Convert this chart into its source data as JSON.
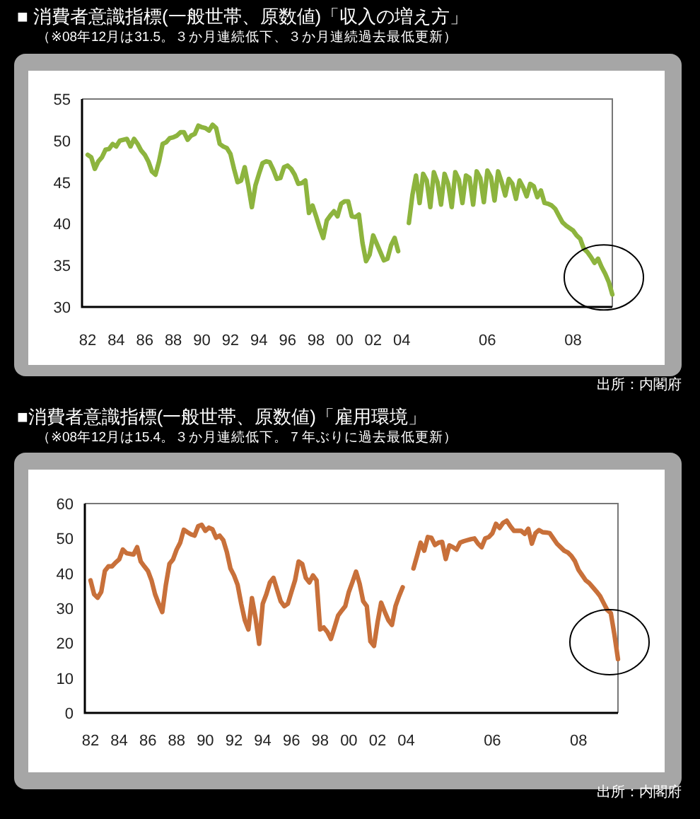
{
  "chart_data": [
    {
      "type": "line",
      "title": "■ 消費者意識指標(一般世帯、原数値)「収入の増え方」",
      "subtitle": "（※08年12月は31.5。３か月連続低下、３か月連続過去最低更新）",
      "categories": [
        "82",
        null,
        null,
        null,
        null,
        null,
        null,
        null,
        "84",
        null,
        null,
        null,
        null,
        null,
        null,
        null,
        "86",
        null,
        null,
        null,
        null,
        null,
        null,
        null,
        "88",
        null,
        null,
        null,
        null,
        null,
        null,
        null,
        "90",
        null,
        null,
        null,
        null,
        null,
        null,
        null,
        "92",
        null,
        null,
        null,
        null,
        null,
        null,
        null,
        "94",
        null,
        null,
        null,
        null,
        null,
        null,
        null,
        "96",
        null,
        null,
        null,
        null,
        null,
        null,
        null,
        "98",
        null,
        null,
        null,
        null,
        null,
        null,
        null,
        "00",
        null,
        null,
        null,
        null,
        null,
        null,
        null,
        "02",
        null,
        null,
        null,
        null,
        null,
        null,
        null,
        "04",
        null,
        null,
        null,
        null,
        null,
        null,
        null,
        null,
        null,
        null,
        null,
        null,
        null,
        null,
        null,
        null,
        null,
        null,
        null,
        null,
        null,
        null,
        null,
        "06",
        null,
        null,
        null,
        null,
        null,
        null,
        null,
        null,
        null,
        null,
        null,
        null,
        null,
        null,
        null,
        null,
        null,
        null,
        null,
        null,
        null,
        null,
        null,
        "08",
        null,
        null,
        null,
        null,
        null,
        null,
        null,
        null,
        null,
        null,
        null
      ],
      "series": [
        {
          "color": "#8db43e",
          "values": [
            48.3,
            48.0,
            46.6,
            47.5,
            48.0,
            48.9,
            49.0,
            49.6,
            49.3,
            50.0,
            50.1,
            50.2,
            49.3,
            50.2,
            49.6,
            48.8,
            48.3,
            47.5,
            46.3,
            45.9,
            47.5,
            49.6,
            49.8,
            50.3,
            50.4,
            50.6,
            51.0,
            51.0,
            50.1,
            50.6,
            50.8,
            51.8,
            51.6,
            51.5,
            51.2,
            51.9,
            51.5,
            49.6,
            49.3,
            49.1,
            48.4,
            46.6,
            45.0,
            45.2,
            46.8,
            44.6,
            42.0,
            44.6,
            46.0,
            47.3,
            47.5,
            47.4,
            46.5,
            45.4,
            45.5,
            46.8,
            47.0,
            46.6,
            45.9,
            44.8,
            44.9,
            45.2,
            41.3,
            42.2,
            40.9,
            39.5,
            38.3,
            40.4,
            41.0,
            41.5,
            40.9,
            42.4,
            42.7,
            42.7,
            40.9,
            40.8,
            41.1,
            37.7,
            35.5,
            36.3,
            38.6,
            37.6,
            36.6,
            35.6,
            35.8,
            37.4,
            38.3,
            36.7,
            null,
            null,
            40.1,
            43.5,
            45.8,
            42.5,
            46.0,
            45.2,
            42.0,
            46.2,
            45.0,
            42.3,
            46.0,
            44.8,
            42.0,
            46.2,
            45.3,
            42.5,
            45.8,
            45.5,
            42.3,
            46.3,
            45.5,
            42.6,
            46.4,
            45.6,
            42.8,
            46.3,
            45.0,
            43.4,
            45.4,
            44.8,
            43.0,
            45.2,
            44.4,
            43.3,
            44.8,
            44.5,
            43.2,
            44.0,
            42.5,
            42.4,
            42.2,
            41.8,
            41.0,
            40.2,
            39.8,
            39.5,
            39.2,
            38.6,
            38.2,
            37.0,
            36.6,
            36.0,
            35.3,
            35.8,
            34.8,
            34.0,
            33.0,
            31.5
          ]
        }
      ],
      "ylim": [
        30,
        55
      ],
      "yticks": [
        30,
        35,
        40,
        45,
        50,
        55
      ],
      "grid": false,
      "annotations": [
        "出所：内閣府"
      ]
    },
    {
      "type": "line",
      "title": "■消費者意識指標(一般世帯、原数値)「雇用環境」",
      "subtitle": "（※08年12月は15.4。３か月連続低下。７年ぶりに過去最低更新）",
      "categories": [
        "82",
        null,
        null,
        null,
        null,
        null,
        null,
        null,
        "84",
        null,
        null,
        null,
        null,
        null,
        null,
        null,
        "86",
        null,
        null,
        null,
        null,
        null,
        null,
        null,
        "88",
        null,
        null,
        null,
        null,
        null,
        null,
        null,
        "90",
        null,
        null,
        null,
        null,
        null,
        null,
        null,
        "92",
        null,
        null,
        null,
        null,
        null,
        null,
        null,
        "94",
        null,
        null,
        null,
        null,
        null,
        null,
        null,
        "96",
        null,
        null,
        null,
        null,
        null,
        null,
        null,
        "98",
        null,
        null,
        null,
        null,
        null,
        null,
        null,
        "00",
        null,
        null,
        null,
        null,
        null,
        null,
        null,
        "02",
        null,
        null,
        null,
        null,
        null,
        null,
        null,
        "04",
        null,
        null,
        null,
        null,
        null,
        null,
        null,
        null,
        null,
        null,
        null,
        null,
        null,
        null,
        null,
        null,
        null,
        null,
        null,
        null,
        null,
        null,
        null,
        "06",
        null,
        null,
        null,
        null,
        null,
        null,
        null,
        null,
        null,
        null,
        null,
        null,
        null,
        null,
        null,
        null,
        null,
        null,
        null,
        null,
        null,
        null,
        null,
        "08",
        null,
        null,
        null,
        null,
        null,
        null,
        null,
        null,
        null,
        null,
        null
      ],
      "series": [
        {
          "color": "#c8703a",
          "values": [
            38,
            34,
            33,
            34.7,
            40.7,
            42,
            42,
            43.1,
            44,
            46.8,
            45.8,
            45.6,
            45.4,
            47.5,
            43.4,
            42,
            40.7,
            38,
            34,
            31.3,
            28.9,
            36.7,
            42.7,
            44,
            46.8,
            48.8,
            52.5,
            51.8,
            51.2,
            50.8,
            53.5,
            53.9,
            52.2,
            53.1,
            52.6,
            50.2,
            50.8,
            49.5,
            46.1,
            41.4,
            39.4,
            36.7,
            31.3,
            26.6,
            23.9,
            32.9,
            27.2,
            19.8,
            31.3,
            34,
            37.4,
            38.7,
            35.3,
            32,
            30.6,
            31.3,
            34.7,
            38,
            43.4,
            42.7,
            38.7,
            37.4,
            39.4,
            38,
            23.9,
            24.5,
            23.2,
            21.2,
            24.5,
            27.9,
            29.3,
            30.6,
            34.7,
            37.5,
            40.5,
            37.0,
            32.0,
            30.6,
            20.5,
            19.2,
            26.0,
            31.6,
            29.0,
            26.6,
            25.2,
            30.6,
            33.5,
            36.0,
            null,
            null,
            41.4,
            45,
            48.8,
            46.5,
            50.4,
            50.2,
            48.1,
            48.8,
            49,
            44.1,
            48.0,
            47.5,
            46.8,
            48.8,
            49.2,
            49.5,
            49.8,
            50.0,
            48.5,
            47.5,
            50.0,
            50.4,
            51.5,
            54.2,
            53.0,
            54.5,
            55.1,
            53.5,
            52.2,
            52.2,
            52.2,
            51.3,
            52.8,
            48.5,
            51.5,
            52.4,
            51.8,
            51.7,
            51.5,
            50.0,
            48.5,
            47.5,
            46.5,
            46.0,
            45.0,
            43.5,
            41.0,
            39.5,
            38.0,
            37.2,
            36.0,
            34.8,
            33.5,
            31.5,
            29.5,
            28.6,
            22.5,
            15.4
          ]
        }
      ],
      "ylim": [
        0,
        60
      ],
      "yticks": [
        0,
        10,
        20,
        30,
        40,
        50,
        60
      ],
      "grid": false,
      "annotations": [
        "出所：内閣府"
      ]
    }
  ]
}
